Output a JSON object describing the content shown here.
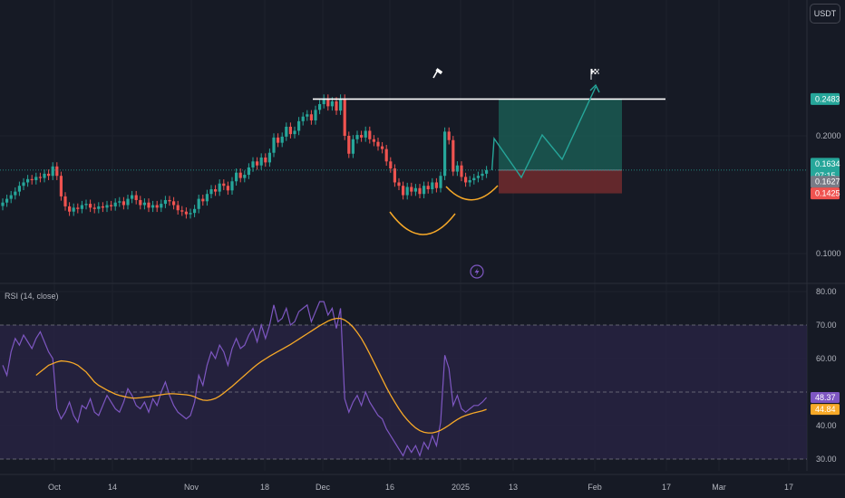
{
  "currency": "USDT",
  "indicator_label": "RSI (14, close)",
  "colors": {
    "background": "#161a25",
    "grid": "#1e222d",
    "bull": "#26a69a",
    "bear": "#ef5350",
    "rsi_line": "#7e57c2",
    "rsi_ma": "#f7a928",
    "rsi_band": "#2a2445",
    "target_zone": "#1a5a52",
    "stop_zone": "#6b2a2d",
    "resistance": "#ffffff",
    "cup": "#f7a928",
    "projection": "#26a69a"
  },
  "icons": {
    "top_marker": "hammer-icon",
    "target_marker": "checkered-flag-icon",
    "bottom_marker": "lightning-icon"
  },
  "chart_data": [
    {
      "type": "candlestick",
      "scale": "log",
      "x_tick_labels": [
        "Oct",
        "14",
        "Nov",
        "18",
        "Dec",
        "16",
        "2025",
        "13",
        "Feb",
        "17",
        "Mar",
        "17"
      ],
      "y_tick_labels": [
        "0.2000",
        "0.1000"
      ],
      "y_ticks": [
        0.2,
        0.1
      ],
      "price_tags": [
        {
          "label": "0.2483",
          "value": 0.2483,
          "color": "#26a69a"
        },
        {
          "label": "0.1634",
          "value": 0.1634,
          "color": "#26a69a",
          "countdown": "07:15"
        },
        {
          "label": "0.1627",
          "value": 0.1627,
          "color": "#787b86"
        },
        {
          "label": "0.1425",
          "value": 0.1425,
          "color": "#ef5350"
        }
      ],
      "close": [
        0.135,
        0.138,
        0.141,
        0.144,
        0.149,
        0.152,
        0.155,
        0.154,
        0.157,
        0.156,
        0.16,
        0.158,
        0.167,
        0.158,
        0.14,
        0.132,
        0.128,
        0.131,
        0.13,
        0.133,
        0.134,
        0.131,
        0.13,
        0.132,
        0.131,
        0.133,
        0.132,
        0.135,
        0.136,
        0.133,
        0.138,
        0.141,
        0.137,
        0.133,
        0.135,
        0.131,
        0.133,
        0.131,
        0.134,
        0.137,
        0.136,
        0.133,
        0.129,
        0.128,
        0.126,
        0.127,
        0.13,
        0.138,
        0.136,
        0.142,
        0.146,
        0.144,
        0.151,
        0.149,
        0.145,
        0.153,
        0.161,
        0.156,
        0.159,
        0.166,
        0.172,
        0.168,
        0.176,
        0.171,
        0.181,
        0.198,
        0.192,
        0.199,
        0.211,
        0.202,
        0.206,
        0.218,
        0.224,
        0.227,
        0.219,
        0.233,
        0.241,
        0.249,
        0.238,
        0.245,
        0.232,
        0.249,
        0.2,
        0.18,
        0.196,
        0.201,
        0.198,
        0.206,
        0.196,
        0.193,
        0.188,
        0.185,
        0.172,
        0.165,
        0.152,
        0.149,
        0.141,
        0.148,
        0.144,
        0.147,
        0.142,
        0.149,
        0.146,
        0.152,
        0.147,
        0.158,
        0.205,
        0.195,
        0.162,
        0.168,
        0.157,
        0.152,
        0.154,
        0.156,
        0.158,
        0.16,
        0.1634
      ],
      "target_price": 0.2483,
      "entry_price": 0.1634,
      "stop_price": 0.1425
    },
    {
      "type": "line",
      "name": "RSI (14, close)",
      "ylim": [
        30,
        80
      ],
      "y_tick_labels": [
        "80.00",
        "70.00",
        "60.00",
        "50.00",
        "40.00",
        "30.00"
      ],
      "y_ticks": [
        80,
        70,
        60,
        50,
        40,
        30
      ],
      "band": [
        30,
        70
      ],
      "midline": 50,
      "values": [
        58,
        55,
        62,
        66,
        64,
        67,
        65,
        63,
        66,
        68,
        65,
        62,
        60,
        45,
        42,
        44,
        47,
        43,
        41,
        46,
        45,
        48,
        44,
        43,
        46,
        49,
        47,
        45,
        44,
        47,
        51,
        49,
        46,
        45,
        47,
        44,
        48,
        46,
        50,
        53,
        49,
        46,
        44,
        43,
        42,
        43,
        47,
        55,
        52,
        58,
        62,
        60,
        64,
        62,
        58,
        63,
        66,
        63,
        64,
        67,
        69,
        65,
        70,
        66,
        70,
        76,
        71,
        72,
        75,
        70,
        71,
        74,
        75,
        76,
        71,
        74,
        77,
        77,
        73,
        75,
        69,
        75,
        48,
        44,
        47,
        49,
        46,
        50,
        47,
        45,
        43,
        42,
        39,
        37,
        35,
        33,
        31,
        34,
        32,
        34,
        31,
        35,
        33,
        37,
        34,
        41,
        61,
        57,
        46,
        49,
        45,
        44,
        45,
        46,
        46,
        47,
        48.37
      ],
      "ma_values": [
        55,
        56,
        57,
        58,
        58.5,
        59,
        59.3,
        59.2,
        59,
        58.6,
        58,
        57,
        56,
        54.5,
        53,
        52,
        51.3,
        50.6,
        50,
        49.4,
        49,
        48.7,
        48.4,
        48.2,
        48.2,
        48.3,
        48.5,
        48.6,
        48.8,
        49,
        49.2,
        49.4,
        49.5,
        49.5,
        49.4,
        49.3,
        49.2,
        49,
        48.6,
        48,
        47.6,
        47.5,
        47.7,
        48.1,
        48.8,
        49.7,
        50.7,
        51.7,
        52.8,
        53.9,
        55,
        56.1,
        57.2,
        58.2,
        59.1,
        59.9,
        60.7,
        61.4,
        62.1,
        62.8,
        63.5,
        64.2,
        65,
        65.8,
        66.6,
        67.4,
        68.2,
        69,
        69.8,
        70.5,
        71.2,
        71.7,
        72,
        72,
        71.5,
        70.6,
        69.4,
        67.8,
        66,
        63.8,
        61.4,
        58.9,
        56.4,
        53.9,
        51.4,
        49.1,
        47,
        45,
        43.2,
        41.7,
        40.4,
        39.3,
        38.5,
        38,
        37.8,
        37.8,
        38.1,
        38.6,
        39.3,
        40.1,
        41,
        41.8,
        42.5,
        43,
        43.4,
        43.8,
        44.1,
        44.4,
        44.84
      ],
      "last_value_label": "48.37",
      "last_ma_label": "44.84"
    }
  ]
}
